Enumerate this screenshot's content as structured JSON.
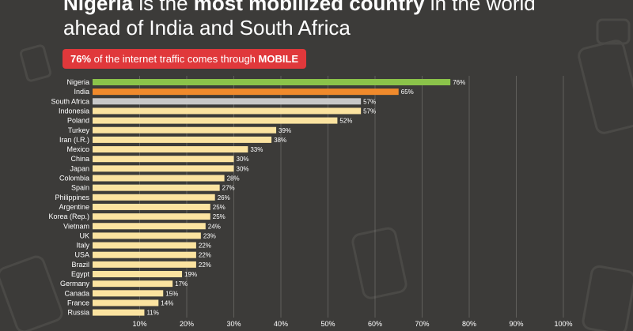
{
  "headline": {
    "line1_part1": "Nigeria",
    "line1_part2": " is the ",
    "line1_part3": "most mobilized country",
    "line1_part4": " in the world",
    "line2": "ahead of India and South Africa"
  },
  "banner": {
    "percent": "76%",
    "middle": " of the internet traffic comes through ",
    "emphasis": "MOBILE",
    "color": "#e0383b"
  },
  "colors": {
    "background": "#3c3b39",
    "nigeria": "#8bc34a",
    "india": "#f08a2c",
    "south_africa": "#c8c8c8",
    "others": "#fbe3a0",
    "gridline": "#9a9a96"
  },
  "chart_data": {
    "type": "bar",
    "orientation": "horizontal",
    "categories": [
      "Nigeria",
      "India",
      "South Africa",
      "Indonesia",
      "Poland",
      "Turkey",
      "Iran (I.R.)",
      "Mexico",
      "China",
      "Japan",
      "Colombia",
      "Spain",
      "Philippines",
      "Argentine",
      "Korea (Rep.)",
      "Vietnam",
      "UK",
      "Italy",
      "USA",
      "Brazil",
      "Egypt",
      "Germany",
      "Canada",
      "France",
      "Russia"
    ],
    "values": [
      76,
      65,
      57,
      57,
      52,
      39,
      38,
      33,
      30,
      30,
      28,
      27,
      26,
      25,
      25,
      24,
      23,
      22,
      22,
      22,
      19,
      17,
      15,
      14,
      11
    ],
    "value_labels": [
      "76%",
      "65%",
      "57%",
      "57%",
      "52%",
      "39%",
      "38%",
      "33%",
      "30%",
      "30%",
      "28%",
      "27%",
      "26%",
      "25%",
      "25%",
      "24%",
      "23%",
      "22%",
      "22%",
      "22%",
      "19%",
      "17%",
      "15%",
      "14%",
      "11%"
    ],
    "bar_colors": [
      "#8bc34a",
      "#f08a2c",
      "#c8c8c8",
      "#fbe3a0",
      "#fbe3a0",
      "#fbe3a0",
      "#fbe3a0",
      "#fbe3a0",
      "#fbe3a0",
      "#fbe3a0",
      "#fbe3a0",
      "#fbe3a0",
      "#fbe3a0",
      "#fbe3a0",
      "#fbe3a0",
      "#fbe3a0",
      "#fbe3a0",
      "#fbe3a0",
      "#fbe3a0",
      "#fbe3a0",
      "#fbe3a0",
      "#fbe3a0",
      "#fbe3a0",
      "#fbe3a0",
      "#fbe3a0"
    ],
    "x_ticks": [
      10,
      20,
      30,
      40,
      50,
      60,
      70,
      80,
      90,
      100
    ],
    "x_tick_labels": [
      "10%",
      "20%",
      "30%",
      "40%",
      "50%",
      "60%",
      "70%",
      "80%",
      "90%",
      "100%"
    ],
    "xlim": [
      0,
      100
    ],
    "grid": true,
    "legend": "none"
  }
}
